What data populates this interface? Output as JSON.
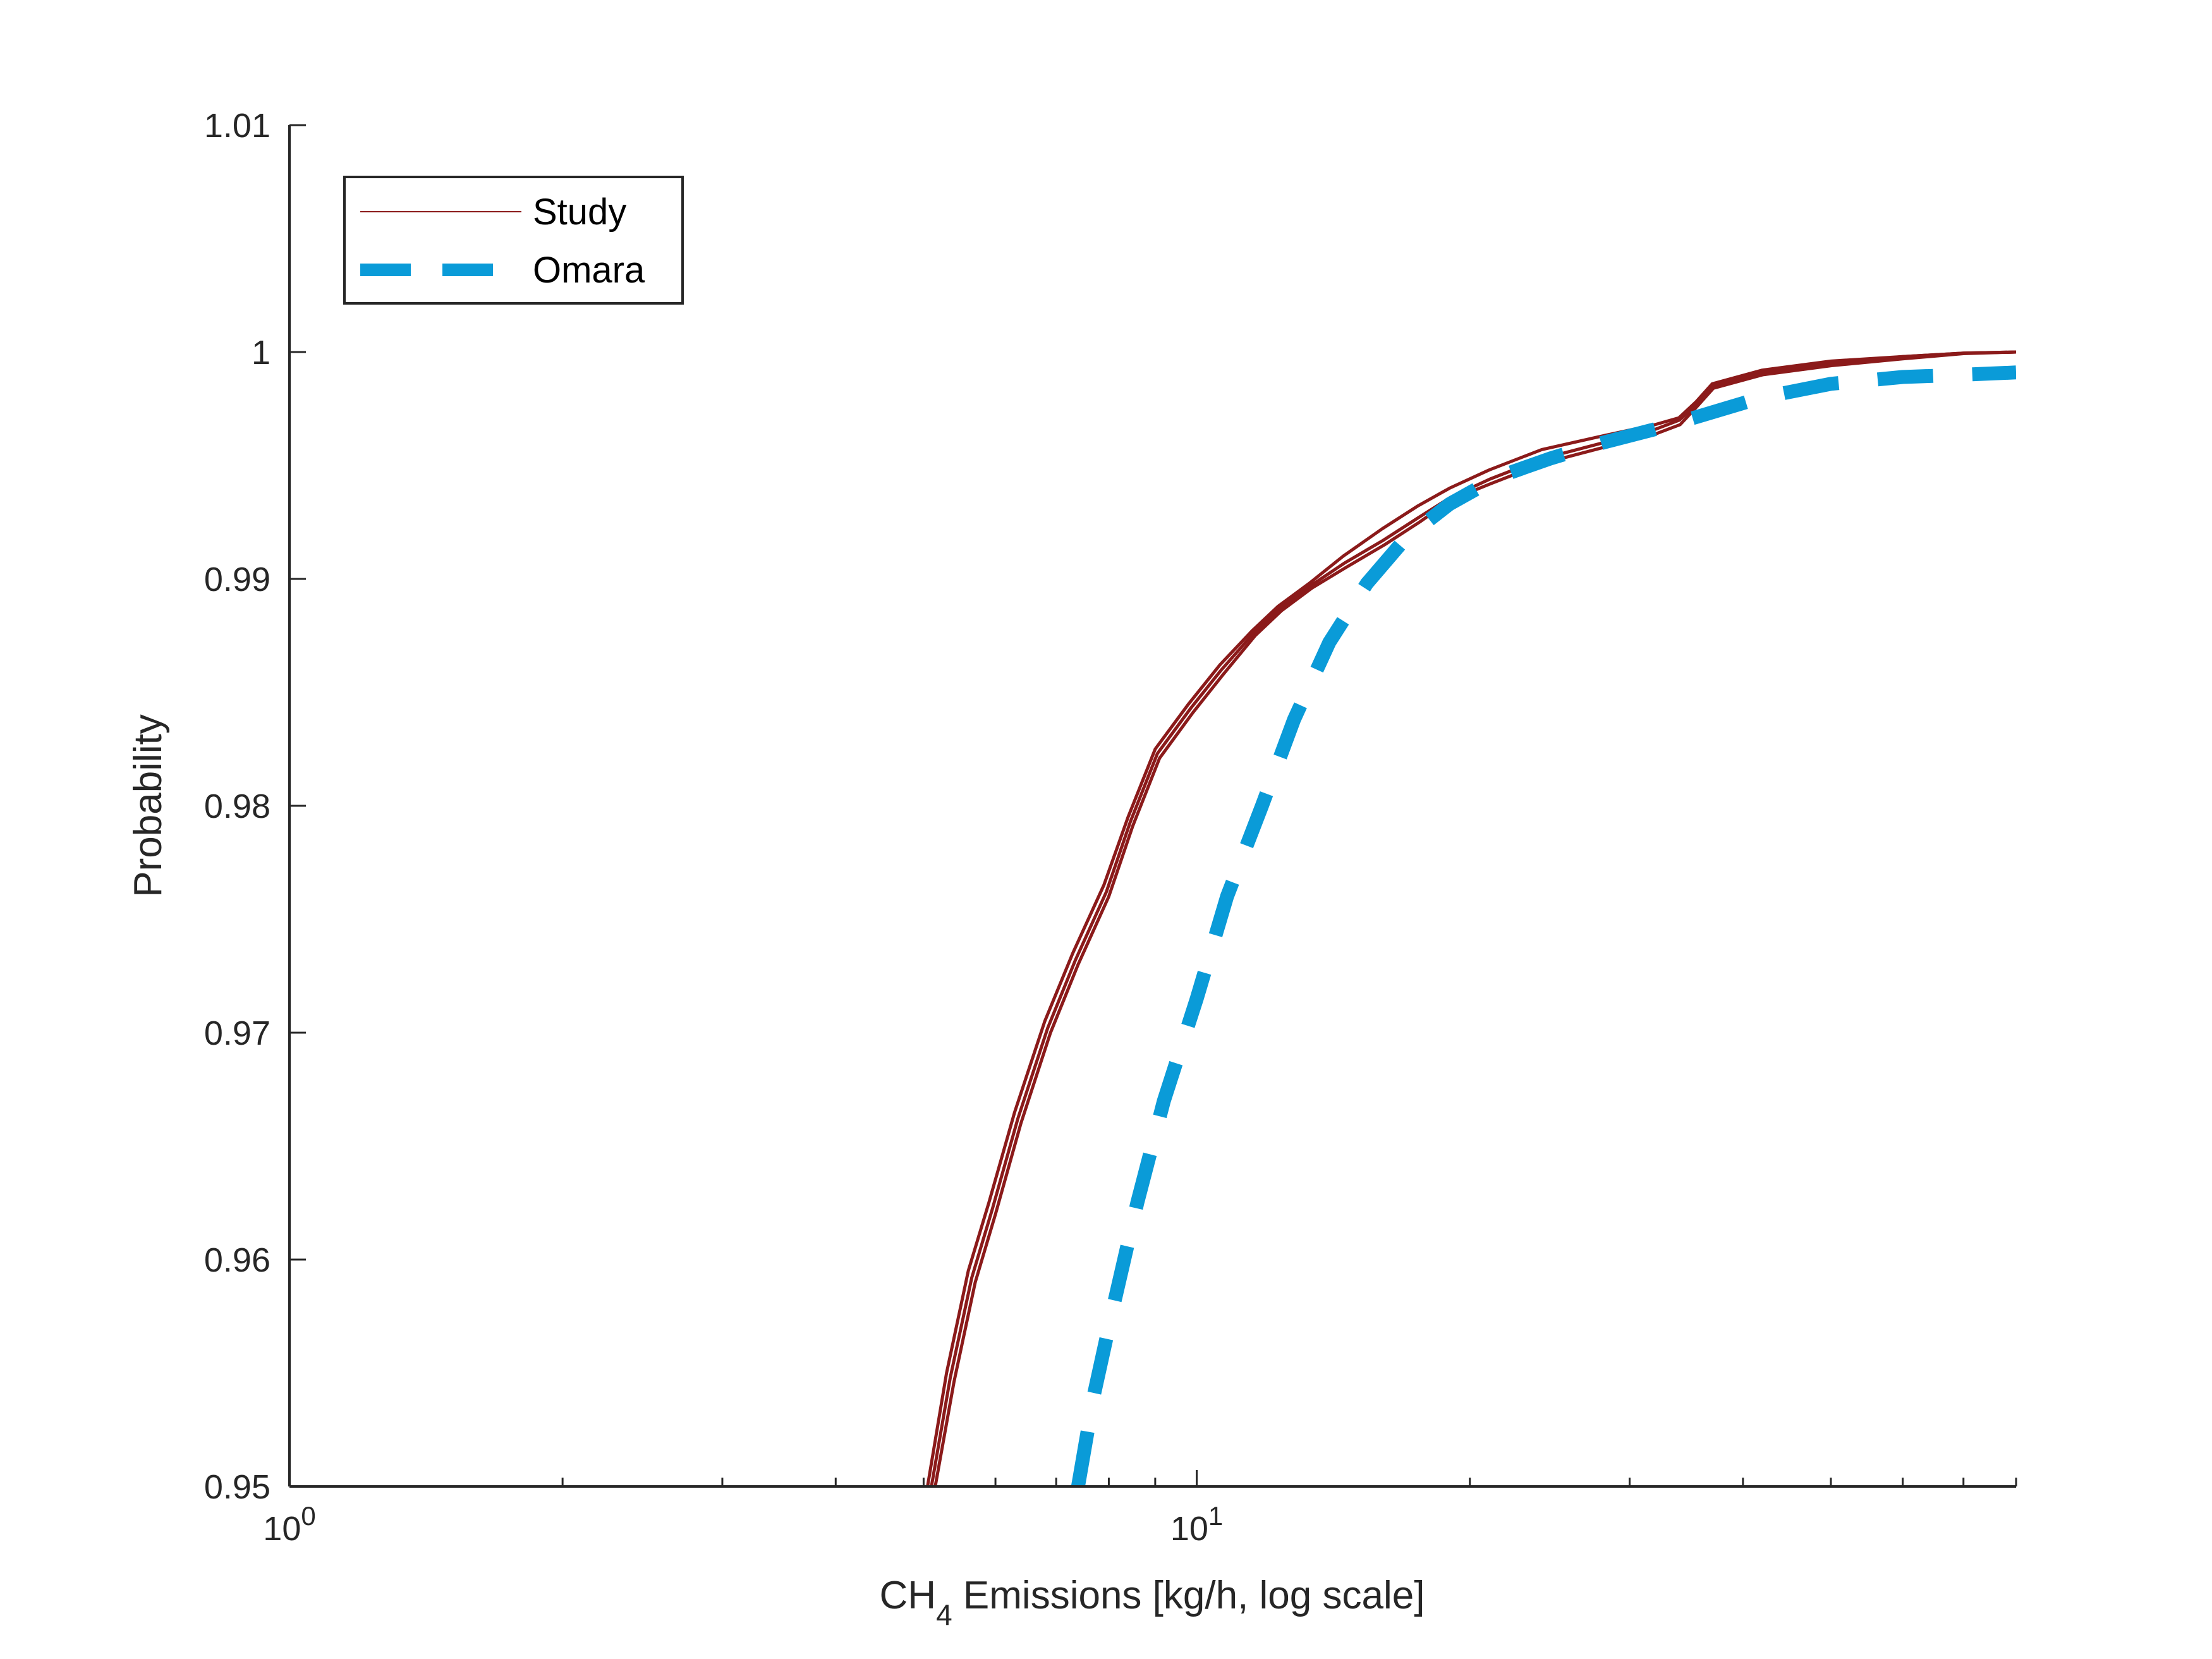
{
  "chart_data": {
    "type": "line",
    "title": "",
    "xlabel": {
      "prefix": "CH",
      "subscript": "4",
      "suffix": " Emissions [kg/h, log scale]"
    },
    "ylabel": "Probability",
    "xscale": "log",
    "xlim": [
      1,
      80
    ],
    "ylim": [
      0.95,
      1.01
    ],
    "grid": false,
    "legend_position": "top-left",
    "x_ticks": [
      {
        "value": 1,
        "base": "10",
        "exponent": "0"
      },
      {
        "value": 10,
        "base": "10",
        "exponent": "1"
      }
    ],
    "y_ticks": [
      "0.95",
      "0.96",
      "0.97",
      "0.98",
      "0.99",
      "1",
      "1.01"
    ],
    "series": [
      {
        "name": "Study",
        "color": "#8b1a1a",
        "style": "solid",
        "traces": [
          {
            "x": [
              5.05,
              5.3,
              5.6,
              5.9,
              6.3,
              6.8,
              7.3,
              7.9,
              8.4,
              9.0,
              9.8,
              10.6,
              11.5,
              12.3,
              13.3,
              14.5,
              16.0,
              17.5,
              19.0,
              21.0,
              24.0,
              28.0,
              32.0,
              34.0,
              35.5,
              37.0,
              42.0,
              50.0,
              60.0,
              70.0,
              80.0
            ],
            "y": [
              0.95,
              0.955,
              0.9595,
              0.9625,
              0.9665,
              0.9705,
              0.9735,
              0.9765,
              0.9795,
              0.9825,
              0.9845,
              0.9862,
              0.9877,
              0.9888,
              0.9898,
              0.991,
              0.9922,
              0.9932,
              0.994,
              0.9948,
              0.9957,
              0.9963,
              0.9968,
              0.9971,
              0.9978,
              0.9986,
              0.9992,
              0.9996,
              0.9998,
              0.99995,
              1.0
            ]
          },
          {
            "x": [
              5.1,
              5.35,
              5.65,
              5.95,
              6.35,
              6.85,
              7.35,
              7.95,
              8.45,
              9.05,
              9.85,
              10.65,
              11.55,
              12.35,
              13.35,
              14.55,
              16.05,
              17.55,
              19.05,
              21.05,
              24.05,
              28.05,
              32.05,
              34.05,
              35.55,
              37.05,
              42.05,
              50.05,
              60.0,
              70.0,
              80.0
            ],
            "y": [
              0.95,
              0.9548,
              0.9592,
              0.9622,
              0.9662,
              0.9702,
              0.9732,
              0.9762,
              0.9793,
              0.9823,
              0.9843,
              0.986,
              0.9876,
              0.9887,
              0.9897,
              0.9907,
              0.9917,
              0.9927,
              0.9936,
              0.9944,
              0.9953,
              0.996,
              0.9966,
              0.997,
              0.9977,
              0.9985,
              0.9991,
              0.9995,
              0.9998,
              0.99995,
              1.0
            ]
          },
          {
            "x": [
              5.15,
              5.4,
              5.7,
              6.0,
              6.4,
              6.9,
              7.4,
              8.0,
              8.5,
              9.1,
              9.9,
              10.7,
              11.6,
              12.4,
              13.4,
              14.6,
              16.1,
              17.6,
              19.1,
              21.1,
              24.1,
              28.1,
              32.1,
              34.1,
              35.6,
              37.1,
              42.1,
              50.1,
              60.0,
              70.0,
              80.0
            ],
            "y": [
              0.95,
              0.9546,
              0.959,
              0.962,
              0.966,
              0.97,
              0.973,
              0.976,
              0.9791,
              0.9821,
              0.9841,
              0.9858,
              0.9875,
              0.9886,
              0.9896,
              0.9905,
              0.9915,
              0.9925,
              0.9935,
              0.9942,
              0.9951,
              0.9958,
              0.9964,
              0.9968,
              0.9976,
              0.9984,
              0.999,
              0.9994,
              0.9997,
              0.99993,
              1.0
            ]
          }
        ]
      },
      {
        "name": "Omara",
        "color": "#0a9bd8",
        "style": "dashed",
        "traces": [
          {
            "x": [
              7.4,
              7.7,
              8.1,
              8.6,
              9.2,
              10.0,
              10.8,
              11.8,
              12.8,
              14.0,
              15.4,
              17.0,
              19.0,
              21.5,
              24.5,
              28.0,
              32.0,
              36.0,
              42.0,
              50.0,
              60.0,
              70.0,
              80.0
            ],
            "y": [
              0.95,
              0.954,
              0.958,
              0.9625,
              0.967,
              0.9715,
              0.976,
              0.98,
              0.9838,
              0.9872,
              0.9898,
              0.9918,
              0.9933,
              0.9945,
              0.9953,
              0.996,
              0.9966,
              0.9972,
              0.998,
              0.9986,
              0.9989,
              0.999,
              0.9991
            ]
          }
        ]
      }
    ]
  }
}
